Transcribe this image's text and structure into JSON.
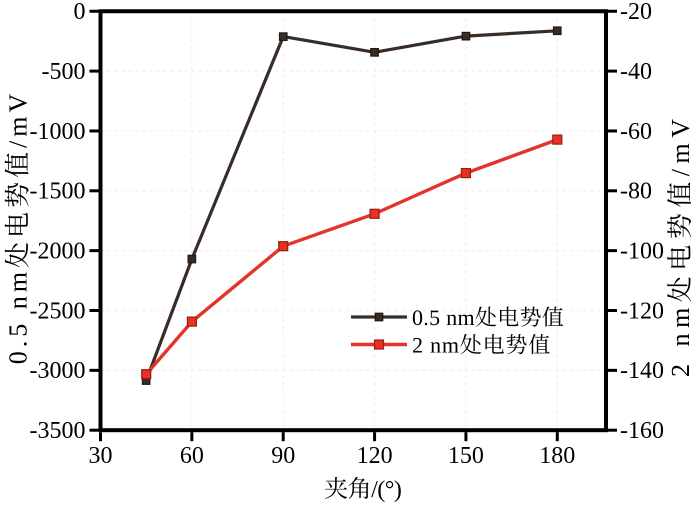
{
  "chart_data": {
    "type": "line",
    "title": "",
    "xlabel": "夹角/(°)",
    "ylabel_left": "0.5 nm处电势值/mV",
    "ylabel_right": "2 nm处电势值/mV",
    "xlim": [
      30,
      196
    ],
    "x_ticks": [
      30,
      60,
      90,
      120,
      150,
      180
    ],
    "ylim_left": [
      -3500,
      0
    ],
    "y_ticks_left": [
      0,
      -500,
      -1000,
      -1500,
      -2000,
      -2500,
      -3000,
      -3500
    ],
    "ylim_right": [
      -160,
      -20
    ],
    "y_ticks_right": [
      -20,
      -40,
      -60,
      -80,
      -100,
      -120,
      -140,
      -160
    ],
    "grid": {
      "show": true,
      "style": "dashed",
      "color": "#efedec"
    },
    "legend_position": "inside-right-lower",
    "series": [
      {
        "name": "0.5 nm处电势值",
        "axis": "left",
        "marker": "square",
        "color": "#372d26",
        "marker_fill": "#372d26",
        "marker_edge": "#1f1813",
        "x": [
          45,
          60,
          90,
          120,
          150,
          180
        ],
        "values": [
          -3085,
          -2070,
          -212,
          -343,
          -208,
          -163
        ]
      },
      {
        "name": "2 nm处电势值",
        "axis": "right",
        "marker": "square",
        "color": "#e2342a",
        "marker_fill": "#ee2e1f",
        "marker_edge": "#8c221a",
        "x": [
          45,
          60,
          90,
          120,
          150,
          180
        ],
        "values": [
          -141.3,
          -123.7,
          -98.5,
          -87.7,
          -74.1,
          -62.9
        ]
      }
    ]
  }
}
